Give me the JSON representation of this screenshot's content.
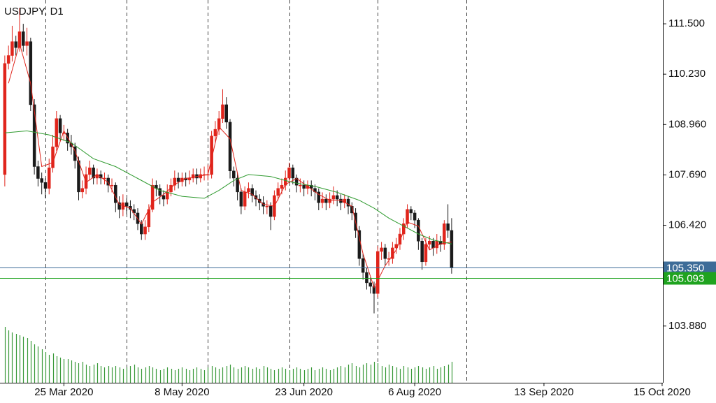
{
  "chart_data": {
    "type": "candlestick",
    "title": "USDJPY, D1",
    "up_color": "#e0241b",
    "down_color": "#1a1a1a",
    "volume_color": "#3a9a3a",
    "ylim": [
      102.45,
      112.1
    ],
    "yticks": [
      {
        "value": 111.5,
        "label": "111.500"
      },
      {
        "value": 110.23,
        "label": "110.230"
      },
      {
        "value": 108.96,
        "label": "108.960"
      },
      {
        "value": 107.69,
        "label": "107.690"
      },
      {
        "value": 106.42,
        "label": "106.420"
      },
      {
        "value": 103.88,
        "label": "103.880"
      }
    ],
    "xlim": [
      -1.3,
      178.2
    ],
    "xticks": [
      {
        "value": 16,
        "label": "25 Mar 2020"
      },
      {
        "value": 48,
        "label": "8 May 2020"
      },
      {
        "value": 81,
        "label": "23 Jun 2020"
      },
      {
        "value": 111,
        "label": "6 Aug 2020"
      },
      {
        "value": 146,
        "label": "13 Sep 2020"
      },
      {
        "value": 178,
        "label": "15 Oct 2020"
      }
    ],
    "separators": [
      11,
      33,
      55,
      77,
      101,
      125
    ],
    "price_lines": [
      {
        "value": 105.35,
        "label": "105.350",
        "color": "#3d6c98"
      },
      {
        "value": 105.093,
        "label": "105.093",
        "color": "#1fa31f"
      }
    ],
    "open": [
      107.7,
      110.5,
      110.7,
      111.05,
      110.9,
      111.3,
      110.95,
      111.05,
      109.46,
      107.9,
      107.6,
      107.5,
      107.35,
      107.87,
      108.4,
      109.11,
      108.75,
      108.75,
      108.49,
      108.4,
      108.05,
      107.26,
      107.35,
      107.7,
      107.87,
      107.61,
      107.7,
      107.61,
      107.61,
      107.43,
      107.43,
      106.99,
      106.82,
      106.99,
      106.9,
      106.82,
      106.73,
      106.46,
      106.2,
      106.38,
      106.82,
      107.43,
      107.35,
      107.17,
      107.08,
      107.26,
      107.43,
      107.61,
      107.52,
      107.61,
      107.56,
      107.61,
      107.7,
      107.61,
      107.7,
      107.7,
      107.7,
      108.67,
      108.84,
      109.11,
      109.46,
      109.02,
      107.79,
      107.61,
      107.26,
      106.9,
      107.26,
      107.35,
      107.17,
      107.08,
      106.99,
      106.9,
      106.9,
      106.64,
      107.17,
      107.35,
      107.43,
      107.61,
      107.87,
      107.61,
      107.43,
      107.43,
      107.35,
      107.43,
      107.35,
      107.26,
      106.99,
      107.08,
      106.99,
      107.08,
      107.17,
      107.08,
      106.99,
      107.08,
      106.9,
      106.73,
      106.29,
      105.58,
      105.23,
      104.97,
      104.88,
      104.7,
      105.76,
      105.85,
      105.58,
      105.58,
      105.85,
      105.94,
      106.2,
      106.46,
      106.82,
      106.73,
      106.55,
      106.02,
      105.5,
      105.94,
      106.02,
      105.85,
      106.02,
      105.94,
      106.46,
      106.29
    ],
    "high": [
      110.7,
      110.95,
      111.45,
      111.2,
      111.9,
      111.5,
      111.4,
      111.15,
      109.6,
      108.05,
      107.75,
      107.6,
      108.1,
      108.7,
      109.3,
      109.2,
      108.95,
      108.85,
      108.7,
      108.5,
      108.15,
      107.55,
      107.9,
      108.05,
      107.95,
      107.85,
      107.8,
      107.75,
      107.7,
      107.6,
      107.5,
      107.15,
      107.2,
      107.1,
      107.05,
      106.95,
      106.85,
      106.55,
      106.55,
      106.95,
      107.6,
      107.55,
      107.45,
      107.3,
      107.45,
      107.6,
      107.8,
      107.75,
      107.75,
      107.75,
      107.8,
      107.85,
      107.85,
      107.85,
      107.9,
      107.95,
      108.8,
      109.05,
      109.3,
      109.85,
      109.65,
      109.1,
      107.9,
      107.75,
      107.35,
      107.4,
      107.5,
      107.45,
      107.3,
      107.2,
      107.15,
      107.05,
      107.0,
      107.3,
      107.5,
      107.6,
      107.8,
      108.0,
      107.95,
      107.7,
      107.6,
      107.55,
      107.55,
      107.55,
      107.45,
      107.35,
      107.25,
      107.2,
      107.25,
      107.4,
      107.3,
      107.2,
      107.2,
      107.15,
      107.0,
      106.85,
      106.4,
      105.7,
      105.35,
      105.1,
      105.0,
      105.9,
      106.0,
      105.95,
      105.75,
      106.0,
      106.1,
      106.35,
      106.6,
      106.95,
      106.9,
      106.8,
      106.6,
      106.1,
      106.1,
      106.15,
      106.1,
      106.2,
      106.15,
      106.55,
      106.95,
      106.6
    ],
    "low": [
      107.4,
      110.35,
      110.55,
      110.7,
      110.8,
      110.8,
      110.7,
      109.3,
      107.7,
      107.4,
      107.2,
      107.1,
      107.2,
      107.75,
      108.3,
      108.55,
      108.55,
      108.3,
      108.2,
      107.85,
      107.05,
      107.1,
      107.2,
      107.55,
      107.45,
      107.45,
      107.45,
      107.45,
      107.25,
      107.25,
      106.75,
      106.6,
      106.65,
      106.7,
      106.6,
      106.55,
      106.3,
      106.05,
      106.05,
      106.25,
      106.75,
      107.15,
      106.95,
      106.9,
      106.95,
      107.15,
      107.3,
      107.35,
      107.4,
      107.4,
      107.45,
      107.5,
      107.45,
      107.5,
      107.55,
      107.55,
      107.6,
      108.5,
      108.7,
      109.0,
      108.85,
      107.6,
      107.4,
      107.05,
      106.7,
      106.8,
      107.1,
      107.0,
      106.9,
      106.8,
      106.7,
      106.7,
      106.3,
      106.55,
      107.05,
      107.2,
      107.3,
      107.5,
      107.45,
      107.25,
      107.25,
      107.15,
      107.2,
      107.15,
      107.05,
      106.8,
      106.85,
      106.8,
      106.85,
      106.95,
      106.9,
      106.8,
      106.85,
      106.7,
      106.55,
      106.1,
      105.4,
      105.05,
      104.8,
      104.7,
      104.2,
      104.6,
      105.55,
      105.4,
      105.4,
      105.45,
      105.7,
      105.8,
      106.05,
      106.35,
      106.55,
      106.35,
      105.8,
      105.3,
      105.4,
      105.8,
      105.65,
      105.7,
      105.75,
      105.8,
      106.1,
      105.2
    ],
    "close": [
      110.5,
      110.7,
      111.05,
      110.9,
      111.3,
      110.95,
      111.05,
      109.46,
      107.9,
      107.6,
      107.5,
      107.35,
      107.87,
      108.4,
      109.11,
      108.75,
      108.75,
      108.49,
      108.4,
      108.05,
      107.26,
      107.35,
      107.7,
      107.87,
      107.61,
      107.7,
      107.61,
      107.61,
      107.43,
      107.43,
      106.99,
      106.82,
      106.99,
      106.9,
      106.82,
      106.73,
      106.46,
      106.2,
      106.38,
      106.82,
      107.43,
      107.35,
      107.17,
      107.08,
      107.26,
      107.43,
      107.61,
      107.52,
      107.61,
      107.56,
      107.61,
      107.7,
      107.61,
      107.7,
      107.7,
      107.7,
      108.67,
      108.84,
      109.11,
      109.46,
      109.02,
      107.79,
      107.61,
      107.26,
      106.9,
      107.26,
      107.35,
      107.17,
      107.08,
      106.99,
      106.9,
      106.9,
      106.64,
      107.17,
      107.35,
      107.43,
      107.61,
      107.87,
      107.61,
      107.43,
      107.43,
      107.35,
      107.43,
      107.35,
      107.26,
      106.99,
      107.08,
      106.99,
      107.08,
      107.17,
      107.08,
      106.99,
      107.08,
      106.9,
      106.73,
      106.29,
      105.58,
      105.23,
      104.97,
      104.88,
      104.7,
      105.76,
      105.85,
      105.58,
      105.58,
      105.85,
      105.94,
      106.2,
      106.46,
      106.82,
      106.73,
      106.55,
      106.02,
      105.5,
      105.94,
      106.02,
      105.85,
      106.02,
      105.94,
      106.46,
      106.29,
      105.35
    ],
    "volume": [
      80,
      75,
      72,
      70,
      68,
      66,
      64,
      60,
      55,
      52,
      48,
      44,
      40,
      42,
      38,
      36,
      34,
      34,
      32,
      30,
      28,
      30,
      26,
      24,
      26,
      28,
      24,
      22,
      24,
      22,
      24,
      22,
      20,
      22,
      24,
      26,
      22,
      20,
      22,
      24,
      22,
      20,
      18,
      20,
      22,
      20,
      18,
      20,
      22,
      20,
      18,
      20,
      22,
      20,
      18,
      22,
      24,
      22,
      20,
      22,
      24,
      26,
      22,
      20,
      22,
      24,
      22,
      20,
      22,
      20,
      24,
      22,
      20,
      18,
      20,
      22,
      20,
      18,
      20,
      22,
      20,
      18,
      20,
      22,
      18,
      20,
      22,
      20,
      18,
      20,
      22,
      24,
      22,
      26,
      28,
      24,
      22,
      26,
      28,
      26,
      30,
      28,
      24,
      22,
      26,
      24,
      22,
      20,
      24,
      22,
      20,
      22,
      24,
      22,
      20,
      22,
      24,
      20,
      22,
      24,
      26,
      30
    ],
    "indicators": [
      {
        "color": "#e0241b",
        "x": [
          1,
          4,
          7,
          10,
          13,
          16,
          19,
          22,
          25,
          28,
          31,
          34,
          37,
          40,
          43,
          46,
          49,
          52,
          55,
          58,
          61,
          64,
          67,
          70,
          73,
          76,
          79,
          82,
          85,
          88,
          91,
          94,
          97,
          100,
          103,
          106,
          109,
          112,
          115,
          118,
          121
        ],
        "values": [
          110.0,
          111.0,
          110.0,
          107.9,
          108.0,
          108.8,
          108.3,
          107.5,
          107.7,
          107.5,
          106.95,
          106.85,
          106.45,
          107.0,
          107.2,
          107.45,
          107.6,
          107.65,
          107.7,
          108.9,
          108.6,
          107.3,
          107.2,
          106.95,
          106.9,
          107.45,
          107.6,
          107.4,
          107.2,
          107.05,
          107.05,
          106.9,
          105.7,
          104.85,
          105.4,
          105.8,
          106.5,
          106.4,
          105.8,
          105.95,
          106.0
        ]
      },
      {
        "color": "#2e9a2e",
        "x": [
          0,
          6,
          12,
          18,
          24,
          30,
          36,
          42,
          48,
          54,
          58,
          62,
          66,
          72,
          78,
          84,
          90,
          96,
          100,
          104,
          108,
          112,
          116,
          121
        ],
        "values": [
          108.75,
          108.8,
          108.7,
          108.5,
          108.1,
          107.9,
          107.6,
          107.3,
          107.15,
          107.1,
          107.3,
          107.55,
          107.7,
          107.65,
          107.5,
          107.4,
          107.25,
          107.05,
          106.85,
          106.6,
          106.4,
          106.2,
          106.05,
          105.95
        ]
      }
    ]
  }
}
